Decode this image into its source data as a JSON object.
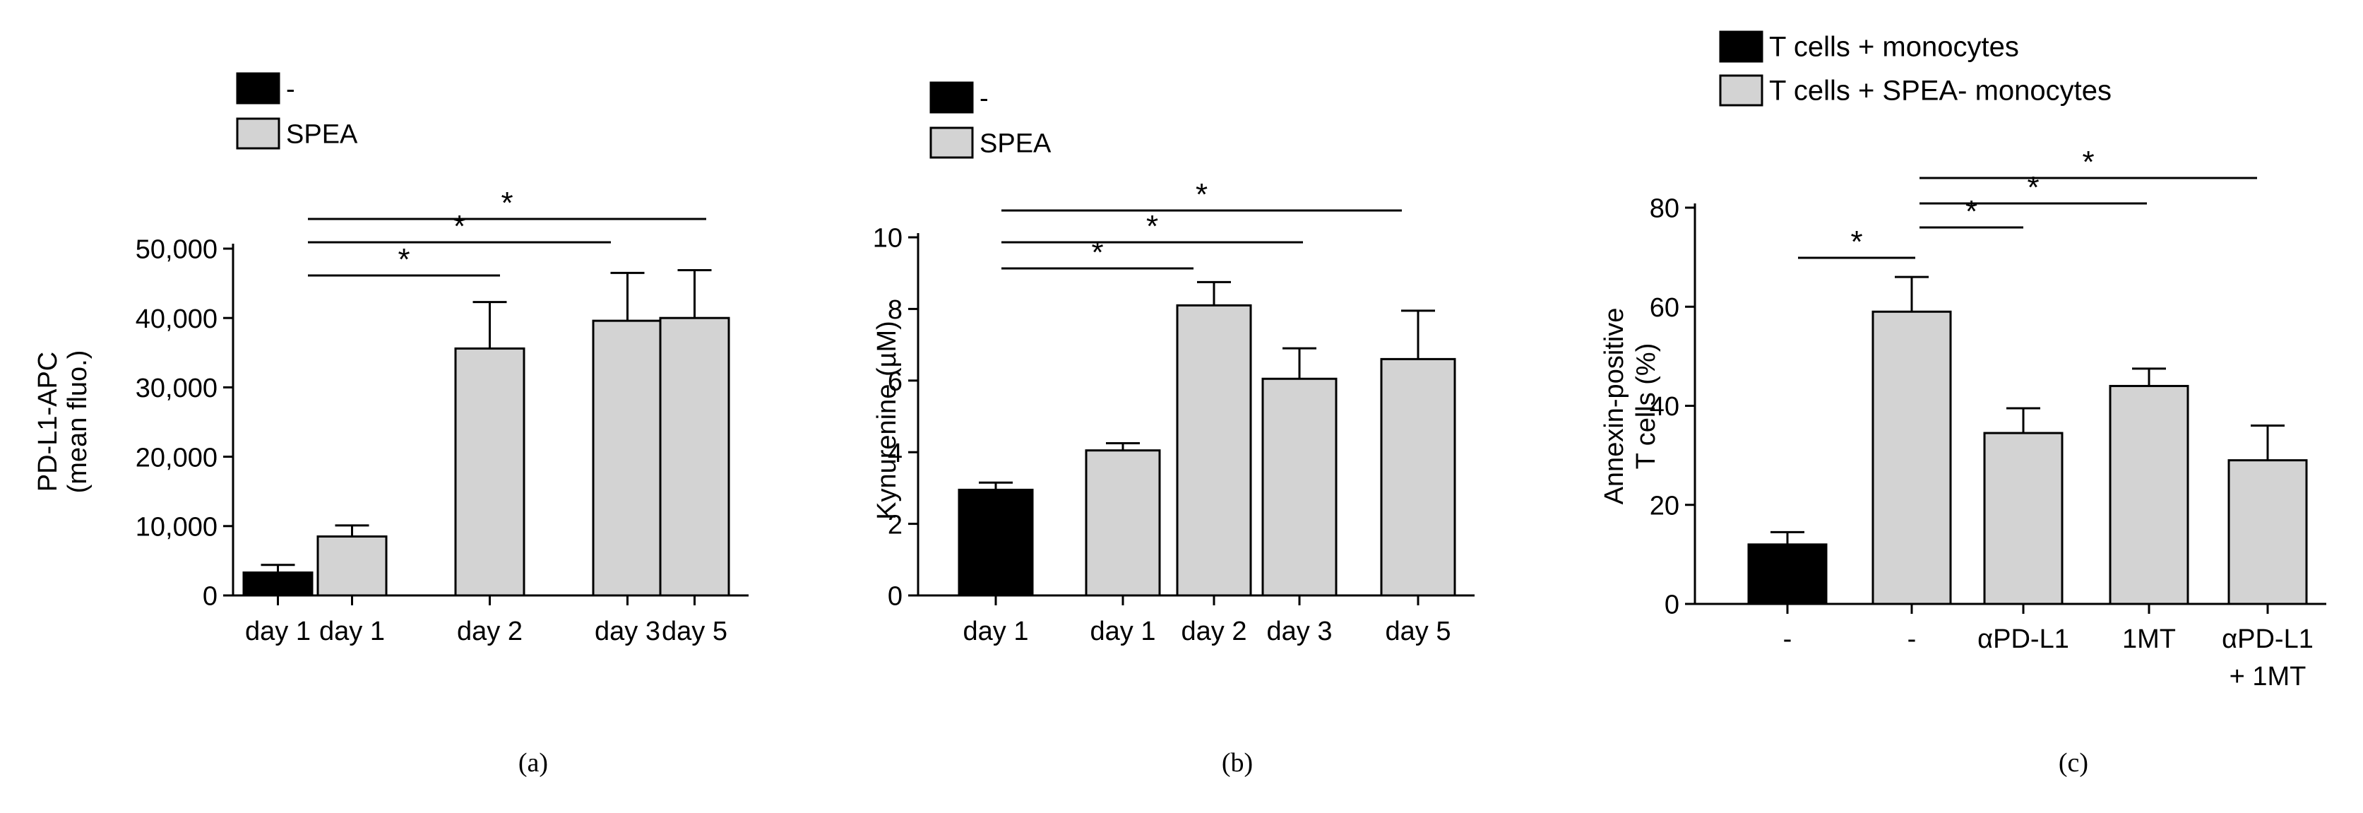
{
  "colors": {
    "black_bar": "#000000",
    "gray_bar": "#d3d3d3"
  },
  "chart_data": [
    {
      "type": "bar",
      "panel_label": "(a)",
      "ylabel": "PD-L1-APC",
      "ylabel_2": "(mean fluo.)",
      "categories": [
        "day 1",
        "day 1",
        "day 2",
        "day 3",
        "day 5"
      ],
      "values": [
        3300,
        8500,
        35600,
        39600,
        40000
      ],
      "errors": [
        1100,
        1600,
        6700,
        6900,
        6900
      ],
      "bar_colors": [
        "black",
        "gray",
        "gray",
        "gray",
        "gray"
      ],
      "ylim": [
        0,
        50000
      ],
      "yticks": [
        0,
        10000,
        20000,
        30000,
        40000,
        50000
      ],
      "ytick_labels": [
        "0",
        "10,000",
        "20,000",
        "30,000",
        "40,000",
        "50,000"
      ],
      "legend": [
        {
          "label": "-",
          "color": "black"
        },
        {
          "label": "SPEA",
          "color": "gray"
        }
      ],
      "significance": [
        {
          "from": 1,
          "to": 2,
          "label": "*"
        },
        {
          "from": 1,
          "to": 3,
          "label": "*"
        },
        {
          "from": 1,
          "to": 4,
          "label": "*"
        }
      ]
    },
    {
      "type": "bar",
      "panel_label": "(b)",
      "ylabel": "Kynurenine (µM)",
      "categories": [
        "day 1",
        "day 1",
        "day 2",
        "day 3",
        "day 5"
      ],
      "values": [
        2.95,
        4.05,
        8.1,
        6.05,
        6.6
      ],
      "errors": [
        0.2,
        0.2,
        0.65,
        0.85,
        1.35
      ],
      "bar_colors": [
        "black",
        "gray",
        "gray",
        "gray",
        "gray"
      ],
      "ylim": [
        0,
        10
      ],
      "yticks": [
        0,
        2,
        4,
        6,
        8,
        10
      ],
      "ytick_labels": [
        "0",
        "2",
        "4",
        "6",
        "8",
        "10"
      ],
      "legend": [
        {
          "label": "-",
          "color": "black"
        },
        {
          "label": "SPEA",
          "color": "gray"
        }
      ],
      "significance": [
        {
          "from": 0,
          "to": 2,
          "label": "*"
        },
        {
          "from": 0,
          "to": 3,
          "label": "*"
        },
        {
          "from": 0,
          "to": 4,
          "label": "*"
        }
      ]
    },
    {
      "type": "bar",
      "panel_label": "(c)",
      "ylabel": "Annexin-positive",
      "ylabel_2": "T cells (%)",
      "categories": [
        "-",
        "-",
        "αPD-L1",
        "1MT",
        "αPD-L1"
      ],
      "categories_line2": [
        "",
        "",
        "",
        "",
        "+ 1MT"
      ],
      "values": [
        12,
        59,
        34.5,
        44,
        29
      ],
      "errors": [
        2.5,
        7,
        5,
        3.5,
        7
      ],
      "bar_colors": [
        "black",
        "gray",
        "gray",
        "gray",
        "gray"
      ],
      "ylim": [
        0,
        80
      ],
      "yticks": [
        0,
        20,
        40,
        60,
        80
      ],
      "ytick_labels": [
        "0",
        "20",
        "40",
        "60",
        "80"
      ],
      "legend": [
        {
          "label": "T cells + monocytes",
          "color": "black"
        },
        {
          "label": "T cells + SPEA- monocytes",
          "color": "gray"
        }
      ],
      "significance": [
        {
          "from": 0,
          "to": 1,
          "label": "*"
        },
        {
          "from": 1,
          "to": 2,
          "label": "*"
        },
        {
          "from": 1,
          "to": 3,
          "label": "*"
        },
        {
          "from": 1,
          "to": 4,
          "label": "*"
        }
      ]
    }
  ]
}
